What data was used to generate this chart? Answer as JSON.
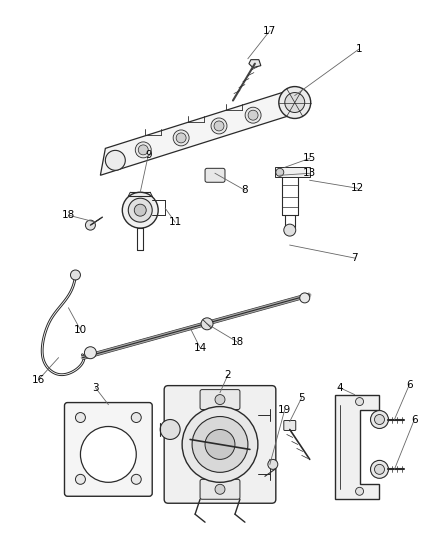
{
  "bg_color": "#ffffff",
  "line_color": "#2a2a2a",
  "fig_width": 4.38,
  "fig_height": 5.33,
  "dpi": 100,
  "label_fontsize": 7.5,
  "parts": {
    "fuel_rail": {
      "color": "#3a3a3a",
      "lw": 1.2
    },
    "components": {
      "color": "#2a2a2a",
      "lw": 0.8
    }
  }
}
